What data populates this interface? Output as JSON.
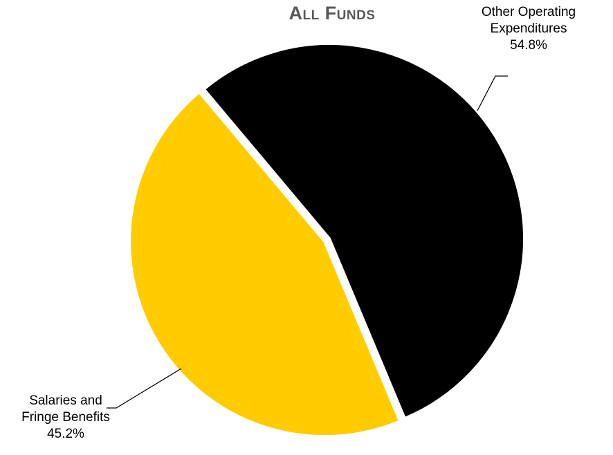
{
  "chart_data": {
    "type": "pie",
    "title": "All Funds",
    "slices": [
      {
        "label_line1": "Other Operating",
        "label_line2": "Expenditures",
        "value": 54.8,
        "value_label": "54.8%",
        "color": "#000000"
      },
      {
        "label_line1": "Salaries and",
        "label_line2": "Fringe Benefits",
        "value": 45.2,
        "value_label": "45.2%",
        "color": "#FFCC00"
      }
    ]
  }
}
